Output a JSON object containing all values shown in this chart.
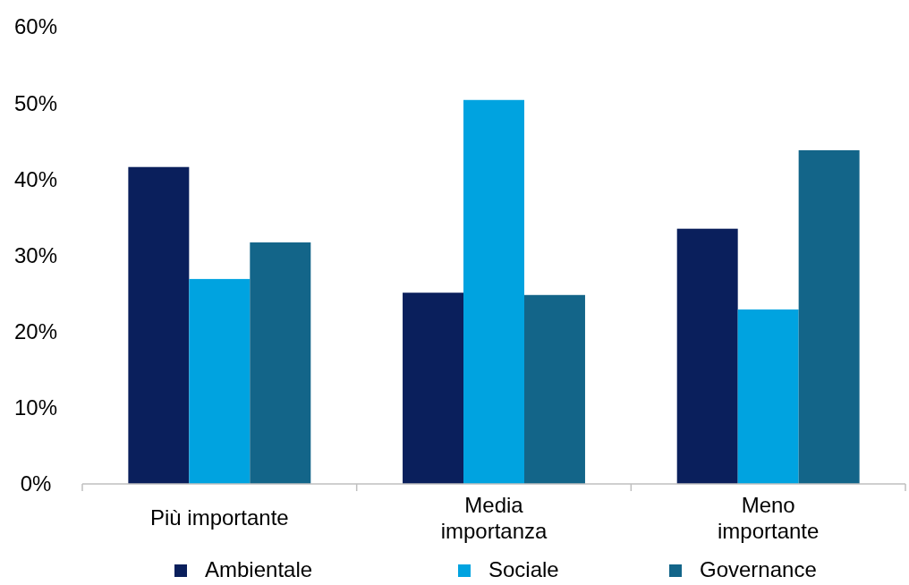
{
  "chart_data": {
    "type": "bar",
    "categories": [
      "Più importante",
      "Media importanza",
      "Meno importante"
    ],
    "series": [
      {
        "name": "Ambientale",
        "color": "#0a1f5c",
        "values": [
          41.6,
          25.1,
          33.5
        ]
      },
      {
        "name": "Sociale",
        "color": "#00a3e0",
        "values": [
          26.9,
          50.4,
          22.9
        ]
      },
      {
        "name": "Governance",
        "color": "#136589",
        "values": [
          31.7,
          24.8,
          43.8
        ]
      }
    ],
    "ylim": [
      0,
      60
    ],
    "yticks": [
      {
        "value": 0,
        "label": "0%"
      },
      {
        "value": 10,
        "label": "10%"
      },
      {
        "value": 20,
        "label": "20%"
      },
      {
        "value": 30,
        "label": "30%"
      },
      {
        "value": 40,
        "label": "40%"
      },
      {
        "value": 50,
        "label": "50%"
      },
      {
        "value": 60,
        "label": "60%"
      }
    ],
    "grid": false,
    "legend": "bottom"
  }
}
